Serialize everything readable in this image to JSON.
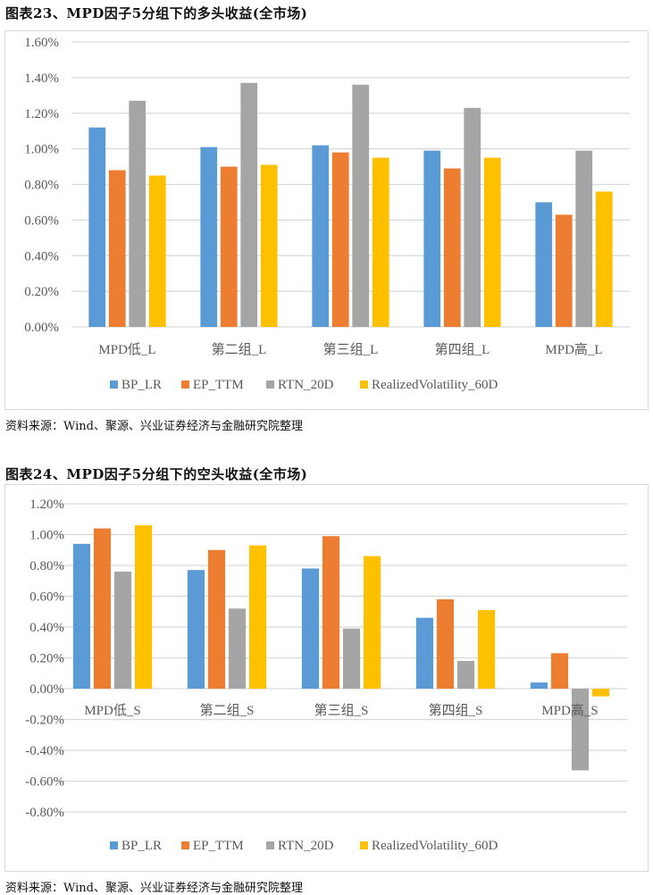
{
  "colors": {
    "BP_LR": "#5b9bd5",
    "EP_TTM": "#ed7d31",
    "RTN_20D": "#a5a5a5",
    "RealizedVolatility_60D": "#ffc000",
    "grid": "#d9d9d9"
  },
  "chart_data": [
    {
      "type": "bar",
      "title": "图表23、MPD因子5分组下的多头收益(全市场)",
      "source": "资料来源：Wind、聚源、兴业证券经济与金融研究院整理",
      "categories": [
        "MPD低_L",
        "第二组_L",
        "第三组_L",
        "第四组_L",
        "MPD高_L"
      ],
      "series": [
        {
          "name": "BP_LR",
          "values": [
            1.12,
            1.01,
            1.02,
            0.99,
            0.7
          ]
        },
        {
          "name": "EP_TTM",
          "values": [
            0.88,
            0.9,
            0.98,
            0.89,
            0.63
          ]
        },
        {
          "name": "RTN_20D",
          "values": [
            1.27,
            1.37,
            1.36,
            1.23,
            0.99
          ]
        },
        {
          "name": "RealizedVolatility_60D",
          "values": [
            0.85,
            0.91,
            0.95,
            0.95,
            0.76
          ]
        }
      ],
      "unit": "%",
      "ylim": [
        0,
        1.6
      ],
      "yticks": [
        "0.00%",
        "0.20%",
        "0.40%",
        "0.60%",
        "0.80%",
        "1.00%",
        "1.20%",
        "1.40%",
        "1.60%"
      ],
      "grid": true,
      "legend": "bottom"
    },
    {
      "type": "bar",
      "title": "图表24、MPD因子5分组下的空头收益(全市场)",
      "source": "资料来源：Wind、聚源、兴业证券经济与金融研究院整理",
      "categories": [
        "MPD低_S",
        "第二组_S",
        "第三组_S",
        "第四组_S",
        "MPD高_S"
      ],
      "series": [
        {
          "name": "BP_LR",
          "values": [
            0.94,
            0.77,
            0.78,
            0.46,
            0.04
          ]
        },
        {
          "name": "EP_TTM",
          "values": [
            1.04,
            0.9,
            0.99,
            0.58,
            0.23
          ]
        },
        {
          "name": "RTN_20D",
          "values": [
            0.76,
            0.52,
            0.39,
            0.18,
            -0.53
          ]
        },
        {
          "name": "RealizedVolatility_60D",
          "values": [
            1.06,
            0.93,
            0.86,
            0.51,
            -0.05
          ]
        }
      ],
      "unit": "%",
      "ylim": [
        -0.8,
        1.2
      ],
      "yticks": [
        "-0.80%",
        "-0.60%",
        "-0.40%",
        "-0.20%",
        "0.00%",
        "0.20%",
        "0.40%",
        "0.60%",
        "0.80%",
        "1.00%",
        "1.20%"
      ],
      "grid": true,
      "legend": "bottom"
    }
  ]
}
